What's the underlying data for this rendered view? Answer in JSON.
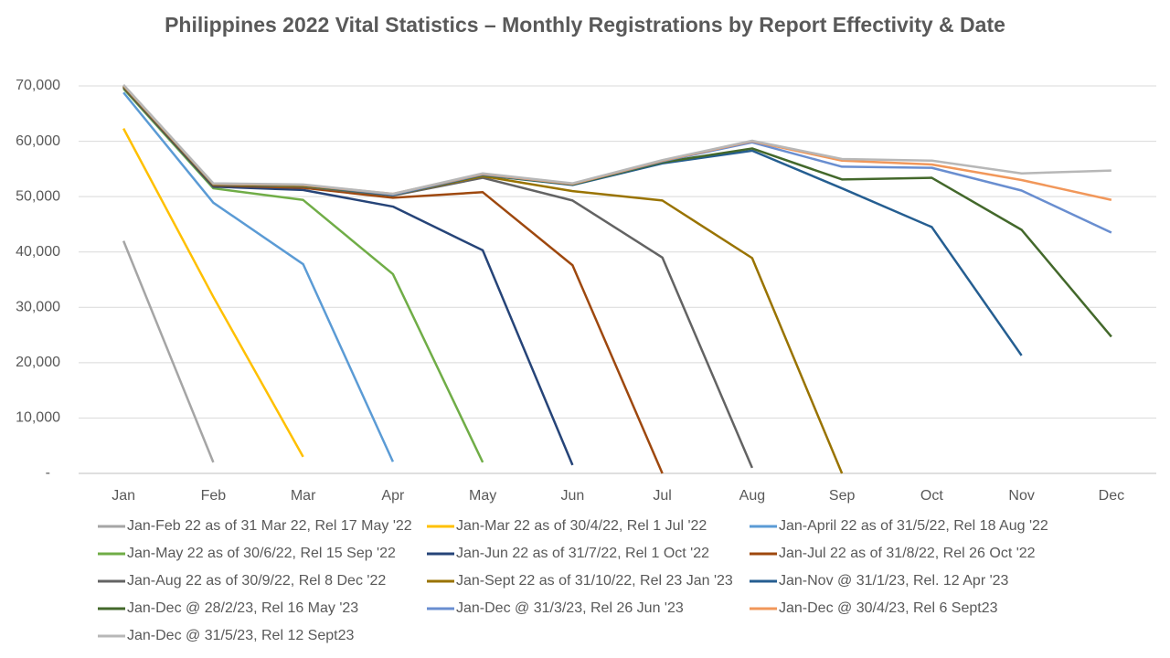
{
  "chart_data": {
    "type": "line",
    "title": "Philippines 2022 Vital Statistics – Monthly Registrations by Report Effectivity & Date",
    "categories": [
      "Jan",
      "Feb",
      "Mar",
      "Apr",
      "May",
      "Jun",
      "Jul",
      "Aug",
      "Sep",
      "Oct",
      "Nov",
      "Dec"
    ],
    "ylim": [
      0,
      70000
    ],
    "yticks": [
      {
        "value": 0,
        "label": "-"
      },
      {
        "value": 10000,
        "label": "10,000"
      },
      {
        "value": 20000,
        "label": "20,000"
      },
      {
        "value": 30000,
        "label": "30,000"
      },
      {
        "value": 40000,
        "label": "40,000"
      },
      {
        "value": 50000,
        "label": "50,000"
      },
      {
        "value": 60000,
        "label": "60,000"
      },
      {
        "value": 70000,
        "label": "70,000"
      }
    ],
    "grid": true,
    "series": [
      {
        "name": "Jan-Feb 22 as of 31 Mar 22, Rel 17 May '22",
        "color": "#a5a5a5",
        "values": [
          42000,
          2000,
          null,
          null,
          null,
          null,
          null,
          null,
          null,
          null,
          null,
          null
        ]
      },
      {
        "name": "Jan-Mar 22 as of 30/4/22, Rel 1 Jul '22",
        "color": "#ffc000",
        "values": [
          62300,
          31900,
          3000,
          null,
          null,
          null,
          null,
          null,
          null,
          null,
          null,
          null
        ]
      },
      {
        "name": "Jan-April 22 as of 31/5/22, Rel 18 Aug '22",
        "color": "#5b9bd5",
        "values": [
          68800,
          48900,
          37800,
          2100,
          null,
          null,
          null,
          null,
          null,
          null,
          null,
          null
        ]
      },
      {
        "name": "Jan-May 22 as of 30/6/22, Rel 15 Sep '22",
        "color": "#70ad47",
        "values": [
          69500,
          51500,
          49400,
          36000,
          2000,
          null,
          null,
          null,
          null,
          null,
          null,
          null
        ]
      },
      {
        "name": "Jan-Jun 22 as of 31/7/22, Rel 1 Oct '22",
        "color": "#264478",
        "values": [
          69700,
          51800,
          51200,
          48200,
          40300,
          1500,
          null,
          null,
          null,
          null,
          null,
          null
        ]
      },
      {
        "name": "Jan-Jul 22 as of 31/8/22, Rel 26 Oct '22",
        "color": "#9e480e",
        "values": [
          69800,
          52000,
          51600,
          49800,
          50800,
          37600,
          0,
          null,
          null,
          null,
          null,
          null
        ]
      },
      {
        "name": "Jan-Aug 22 as of 30/9/22, Rel 8 Dec '22",
        "color": "#636363",
        "values": [
          69900,
          52100,
          51800,
          50200,
          53400,
          49300,
          39000,
          1000,
          null,
          null,
          null,
          null
        ]
      },
      {
        "name": "Jan-Sept 22 as of 31/10/22, Rel 23 Jan '23",
        "color": "#997300",
        "values": [
          69900,
          52200,
          51900,
          50300,
          53700,
          51000,
          49300,
          38900,
          0,
          null,
          null,
          null
        ]
      },
      {
        "name": "Jan-Nov @ 31/1/23, Rel. 12 Apr '23",
        "color": "#255e91",
        "values": [
          70000,
          52200,
          52000,
          50300,
          53900,
          52100,
          56000,
          58300,
          51500,
          44500,
          21300,
          null
        ]
      },
      {
        "name": "Jan-Dec @ 28/2/23, Rel 16 May '23",
        "color": "#43682b",
        "values": [
          70000,
          52200,
          52000,
          50400,
          53900,
          52200,
          56200,
          58700,
          53100,
          53400,
          44000,
          24700
        ]
      },
      {
        "name": "Jan-Dec @ 31/3/23, Rel 26 Jun '23",
        "color": "#698ed0",
        "values": [
          70100,
          52300,
          52100,
          50400,
          54000,
          52300,
          56400,
          59800,
          55400,
          55200,
          51100,
          43500
        ]
      },
      {
        "name": "Jan-Dec @ 30/4/23, Rel 6 Sept23",
        "color": "#f1975a",
        "values": [
          70100,
          52300,
          52100,
          50500,
          54100,
          52300,
          56500,
          60000,
          56500,
          55800,
          53000,
          49400
        ]
      },
      {
        "name": "Jan-Dec @ 31/5/23, Rel 12 Sept23",
        "color": "#b7b7b7",
        "values": [
          70200,
          52400,
          52200,
          50500,
          54200,
          52400,
          56600,
          60100,
          56800,
          56500,
          54200,
          54700
        ]
      }
    ]
  }
}
